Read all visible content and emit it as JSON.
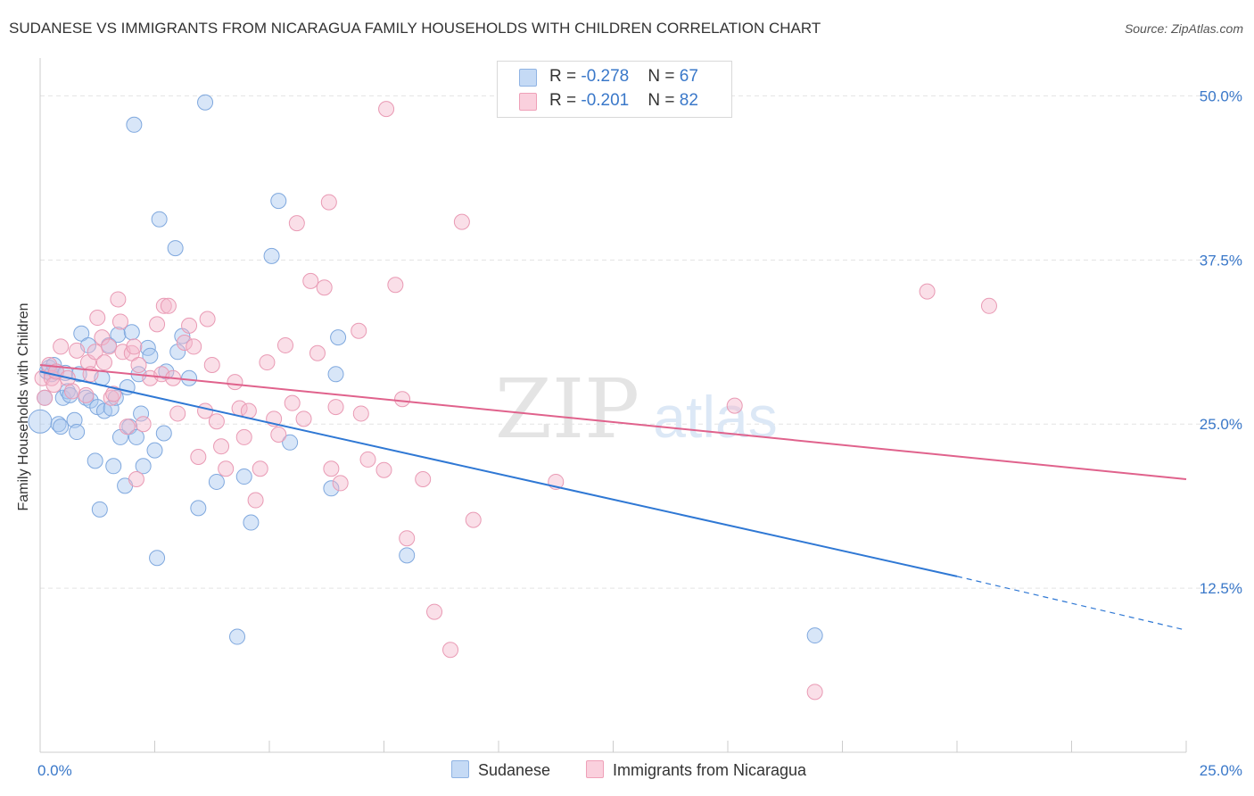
{
  "header": {
    "title": "SUDANESE VS IMMIGRANTS FROM NICARAGUA FAMILY HOUSEHOLDS WITH CHILDREN CORRELATION CHART",
    "source": "Source: ZipAtlas.com"
  },
  "watermark": {
    "zip": "ZIP",
    "atlas": "atlas"
  },
  "legend": {
    "rows": [
      {
        "r_label": "R = ",
        "r_value": "-0.278",
        "n_label": "N = ",
        "n_value": "67"
      },
      {
        "r_label": "R = ",
        "r_value": "-0.201",
        "n_label": "N = ",
        "n_value": "82"
      }
    ]
  },
  "chart_data": {
    "type": "scatter",
    "title": "SUDANESE VS IMMIGRANTS FROM NICARAGUA FAMILY HOUSEHOLDS WITH CHILDREN CORRELATION CHART",
    "xlabel": "",
    "ylabel": "Family Households with Children",
    "xlim": [
      0,
      25
    ],
    "ylim": [
      0,
      52
    ],
    "x_tick_labels": [
      "0.0%",
      "25.0%"
    ],
    "y_tick_labels": [
      "12.5%",
      "25.0%",
      "37.5%",
      "50.0%"
    ],
    "y_ticks": [
      12.5,
      25.0,
      37.5,
      50.0
    ],
    "grid": true,
    "legend_position": "top-center",
    "colors": {
      "sudanese": "#a9c8f0",
      "sudanese_line": "#2f78d4",
      "nicaragua": "#f5b8cb",
      "nicaragua_line": "#e0628c",
      "tick_label": "#3a78c9"
    },
    "series": [
      {
        "name": "Sudanese",
        "R": -0.278,
        "N": 67,
        "trend": {
          "x": [
            0,
            20
          ],
          "y": [
            29.0,
            13.4
          ],
          "dashed_to": [
            25,
            9.3
          ]
        },
        "points": [
          [
            0.0,
            25.2
          ],
          [
            0.1,
            27.0
          ],
          [
            0.15,
            29.0
          ],
          [
            0.2,
            29.3
          ],
          [
            0.25,
            28.8
          ],
          [
            0.3,
            29.5
          ],
          [
            0.35,
            29.0
          ],
          [
            0.4,
            25.0
          ],
          [
            0.45,
            24.8
          ],
          [
            0.5,
            27.0
          ],
          [
            0.55,
            28.9
          ],
          [
            0.6,
            27.5
          ],
          [
            0.65,
            27.2
          ],
          [
            0.75,
            25.3
          ],
          [
            0.8,
            24.4
          ],
          [
            0.85,
            28.8
          ],
          [
            0.9,
            31.9
          ],
          [
            1.0,
            27.0
          ],
          [
            1.05,
            31.0
          ],
          [
            1.1,
            26.8
          ],
          [
            1.2,
            22.2
          ],
          [
            1.25,
            26.3
          ],
          [
            1.3,
            18.5
          ],
          [
            1.35,
            28.5
          ],
          [
            1.4,
            26.0
          ],
          [
            1.5,
            31.0
          ],
          [
            1.55,
            26.2
          ],
          [
            1.6,
            21.8
          ],
          [
            1.65,
            27.0
          ],
          [
            1.7,
            31.8
          ],
          [
            1.75,
            24.0
          ],
          [
            1.85,
            20.3
          ],
          [
            1.9,
            27.8
          ],
          [
            1.95,
            24.8
          ],
          [
            2.0,
            32.0
          ],
          [
            2.05,
            47.8
          ],
          [
            2.1,
            24.0
          ],
          [
            2.15,
            28.8
          ],
          [
            2.2,
            25.8
          ],
          [
            2.25,
            21.8
          ],
          [
            2.35,
            30.8
          ],
          [
            2.4,
            30.2
          ],
          [
            2.5,
            23.0
          ],
          [
            2.55,
            14.8
          ],
          [
            2.6,
            40.6
          ],
          [
            2.7,
            24.3
          ],
          [
            2.75,
            29.0
          ],
          [
            2.95,
            38.4
          ],
          [
            3.0,
            30.5
          ],
          [
            3.1,
            31.7
          ],
          [
            3.25,
            28.5
          ],
          [
            3.45,
            18.6
          ],
          [
            3.6,
            49.5
          ],
          [
            3.85,
            20.6
          ],
          [
            4.3,
            8.8
          ],
          [
            4.45,
            21.0
          ],
          [
            4.6,
            17.5
          ],
          [
            5.05,
            37.8
          ],
          [
            5.2,
            42.0
          ],
          [
            5.45,
            23.6
          ],
          [
            6.35,
            20.1
          ],
          [
            6.45,
            28.8
          ],
          [
            6.5,
            31.6
          ],
          [
            8.0,
            15.0
          ],
          [
            16.9,
            8.9
          ]
        ]
      },
      {
        "name": "Immigrants from Nicaragua",
        "R": -0.201,
        "N": 82,
        "trend": {
          "x": [
            0,
            25
          ],
          "y": [
            29.5,
            20.8
          ]
        },
        "points": [
          [
            0.05,
            28.5
          ],
          [
            0.1,
            27.0
          ],
          [
            0.2,
            29.5
          ],
          [
            0.25,
            28.5
          ],
          [
            0.3,
            28.0
          ],
          [
            0.35,
            29.0
          ],
          [
            0.45,
            30.9
          ],
          [
            0.6,
            28.5
          ],
          [
            0.7,
            27.5
          ],
          [
            0.8,
            30.6
          ],
          [
            1.0,
            27.2
          ],
          [
            1.05,
            29.7
          ],
          [
            1.1,
            28.8
          ],
          [
            1.2,
            30.5
          ],
          [
            1.25,
            33.1
          ],
          [
            1.35,
            31.6
          ],
          [
            1.4,
            29.7
          ],
          [
            1.5,
            30.9
          ],
          [
            1.55,
            27.0
          ],
          [
            1.6,
            27.3
          ],
          [
            1.7,
            34.5
          ],
          [
            1.75,
            32.8
          ],
          [
            1.8,
            30.5
          ],
          [
            1.9,
            24.8
          ],
          [
            2.0,
            30.4
          ],
          [
            2.05,
            30.9
          ],
          [
            2.1,
            20.8
          ],
          [
            2.15,
            29.5
          ],
          [
            2.25,
            25.0
          ],
          [
            2.4,
            28.5
          ],
          [
            2.55,
            32.6
          ],
          [
            2.65,
            28.8
          ],
          [
            2.7,
            34.0
          ],
          [
            2.8,
            34.0
          ],
          [
            2.9,
            28.5
          ],
          [
            3.0,
            25.8
          ],
          [
            3.15,
            31.2
          ],
          [
            3.25,
            32.5
          ],
          [
            3.35,
            30.9
          ],
          [
            3.45,
            22.5
          ],
          [
            3.6,
            26.0
          ],
          [
            3.65,
            33.0
          ],
          [
            3.75,
            29.5
          ],
          [
            3.85,
            25.2
          ],
          [
            3.95,
            23.3
          ],
          [
            4.05,
            21.6
          ],
          [
            4.25,
            28.2
          ],
          [
            4.35,
            26.2
          ],
          [
            4.45,
            24.0
          ],
          [
            4.55,
            26.0
          ],
          [
            4.7,
            19.2
          ],
          [
            4.8,
            21.6
          ],
          [
            4.95,
            29.7
          ],
          [
            5.1,
            25.4
          ],
          [
            5.2,
            24.2
          ],
          [
            5.35,
            31.0
          ],
          [
            5.5,
            26.6
          ],
          [
            5.6,
            40.3
          ],
          [
            5.75,
            25.4
          ],
          [
            5.9,
            35.9
          ],
          [
            6.05,
            30.4
          ],
          [
            6.2,
            35.4
          ],
          [
            6.3,
            41.9
          ],
          [
            6.35,
            21.6
          ],
          [
            6.45,
            26.3
          ],
          [
            6.55,
            20.5
          ],
          [
            6.95,
            32.1
          ],
          [
            7.0,
            25.8
          ],
          [
            7.15,
            22.3
          ],
          [
            7.5,
            21.5
          ],
          [
            7.55,
            49.0
          ],
          [
            7.75,
            35.6
          ],
          [
            7.9,
            26.9
          ],
          [
            8.0,
            16.3
          ],
          [
            8.35,
            20.8
          ],
          [
            8.6,
            10.7
          ],
          [
            8.95,
            7.8
          ],
          [
            9.2,
            40.4
          ],
          [
            9.45,
            17.7
          ],
          [
            11.25,
            20.6
          ],
          [
            15.15,
            26.4
          ],
          [
            16.9,
            4.6
          ],
          [
            19.35,
            35.1
          ],
          [
            20.7,
            34.0
          ]
        ]
      }
    ]
  },
  "bottom_legend": {
    "items": [
      "Sudanese",
      "Immigrants from Nicaragua"
    ]
  }
}
